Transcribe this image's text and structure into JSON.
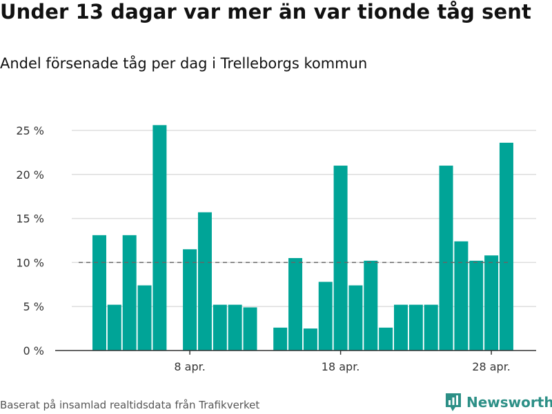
{
  "title": "Under 13 dagar var mer än var tionde tåg sent",
  "subtitle": "Andel försenade tåg per dag i Trelleborgs kommun",
  "footer": "Baserat på insamlad realtidsdata från Trafikverket",
  "brand": {
    "name": "Newsworthy",
    "color": "#2c8f86"
  },
  "chart_data": {
    "type": "bar",
    "x": [
      "2 apr.",
      "3 apr.",
      "4 apr.",
      "5 apr.",
      "6 apr.",
      "7 apr.",
      "8 apr.",
      "9 apr.",
      "10 apr.",
      "11 apr.",
      "12 apr.",
      "13 apr.",
      "14 apr.",
      "15 apr.",
      "16 apr.",
      "17 apr.",
      "18 apr.",
      "19 apr.",
      "20 apr.",
      "21 apr.",
      "22 apr.",
      "23 apr.",
      "24 apr.",
      "25 apr.",
      "26 apr.",
      "27 apr.",
      "28 apr.",
      "29 apr."
    ],
    "values": [
      13.1,
      5.2,
      13.1,
      7.4,
      25.6,
      null,
      11.5,
      15.7,
      5.2,
      5.2,
      4.9,
      null,
      2.6,
      10.5,
      2.5,
      7.8,
      21.0,
      7.4,
      10.2,
      2.6,
      5.2,
      5.2,
      5.2,
      21.0,
      12.4,
      10.2,
      10.8,
      23.6
    ],
    "xticks": [
      {
        "at": "8 apr.",
        "label": "8 apr."
      },
      {
        "at": "18 apr.",
        "label": "18 apr."
      },
      {
        "at": "28 apr.",
        "label": "28 apr."
      }
    ],
    "yticks": [
      0,
      5,
      10,
      15,
      20,
      25
    ],
    "ytick_labels": [
      "0 %",
      "5 %",
      "10 %",
      "15 %",
      "20 %",
      "25 %"
    ],
    "ylim": [
      0,
      25
    ],
    "reference_line": {
      "value": 10,
      "style": "dashed"
    },
    "grid": true,
    "colors": {
      "bar": "#00a497",
      "grid": "#dddddd",
      "reference": "#666666",
      "axis": "#333333"
    }
  }
}
